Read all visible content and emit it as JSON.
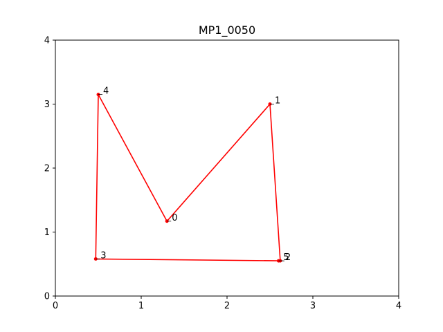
{
  "chart_data": {
    "type": "line",
    "title": "MP1_0050",
    "xlabel": "",
    "ylabel": "",
    "xlim": [
      0,
      4
    ],
    "ylim": [
      0,
      4
    ],
    "xticks": [
      0,
      1,
      2,
      3,
      4
    ],
    "yticks": [
      0,
      1,
      2,
      3,
      4
    ],
    "grid": false,
    "series": [
      {
        "color": "#ff0000",
        "points": [
          {
            "label": "0",
            "x": 1.3,
            "y": 1.17
          },
          {
            "label": "1",
            "x": 2.5,
            "y": 3.0
          },
          {
            "label": "2",
            "x": 2.62,
            "y": 0.55
          },
          {
            "label": "3",
            "x": 0.47,
            "y": 0.58
          },
          {
            "label": "4",
            "x": 0.5,
            "y": 3.15
          },
          {
            "label": "5",
            "x": 2.6,
            "y": 0.55
          }
        ],
        "path_order": [
          0,
          1,
          2,
          3,
          4,
          0
        ]
      }
    ]
  }
}
